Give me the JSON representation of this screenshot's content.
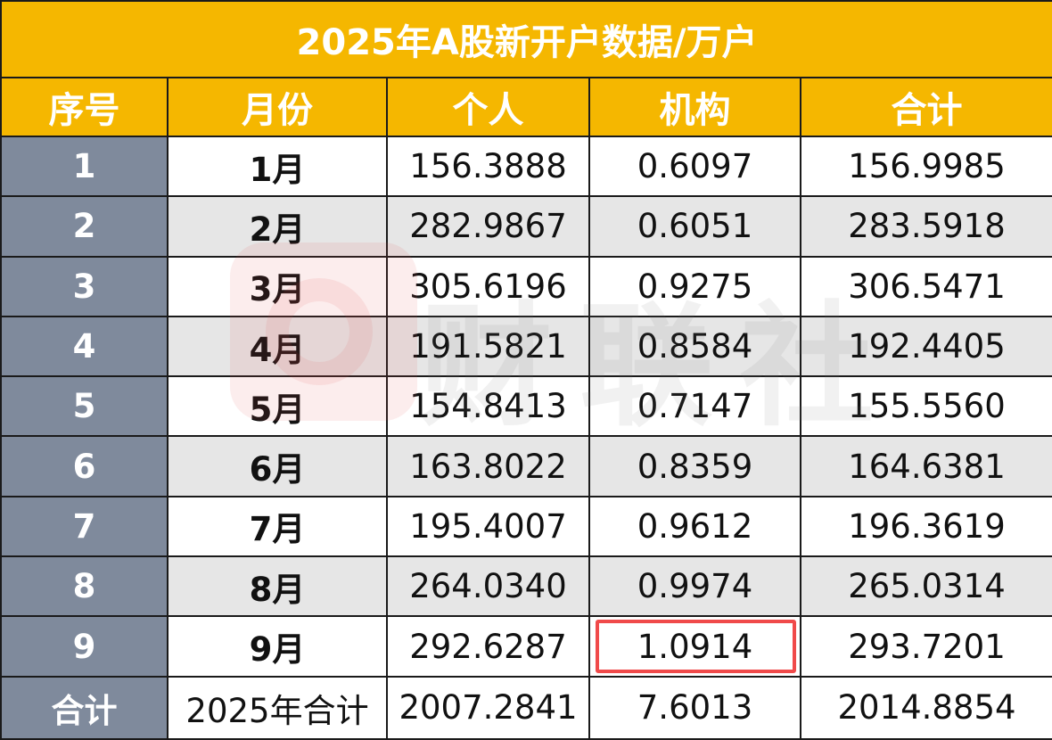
{
  "title": "2025年A股新开户数据/万户",
  "columns": [
    "序号",
    "月份",
    "个人",
    "机构",
    "合计"
  ],
  "rows": [
    {
      "seq": "1",
      "month": "1月",
      "individual": "156.3888",
      "institution": "0.6097",
      "total": "156.9985"
    },
    {
      "seq": "2",
      "month": "2月",
      "individual": "282.9867",
      "institution": "0.6051",
      "total": "283.5918"
    },
    {
      "seq": "3",
      "month": "3月",
      "individual": "305.6196",
      "institution": "0.9275",
      "total": "306.5471"
    },
    {
      "seq": "4",
      "month": "4月",
      "individual": "191.5821",
      "institution": "0.8584",
      "total": "192.4405"
    },
    {
      "seq": "5",
      "month": "5月",
      "individual": "154.8413",
      "institution": "0.7147",
      "total": "155.5560"
    },
    {
      "seq": "6",
      "month": "6月",
      "individual": "163.8022",
      "institution": "0.8359",
      "total": "164.6381"
    },
    {
      "seq": "7",
      "month": "7月",
      "individual": "195.4007",
      "institution": "0.9612",
      "total": "196.3619"
    },
    {
      "seq": "8",
      "month": "8月",
      "individual": "264.0340",
      "institution": "0.9974",
      "total": "265.0314"
    },
    {
      "seq": "9",
      "month": "9月",
      "individual": "292.6287",
      "institution": "1.0914",
      "total": "293.7201"
    }
  ],
  "total_row": {
    "seq": "合计",
    "month": "2025年合计",
    "individual": "2007.2841",
    "institution": "7.6013",
    "total": "2014.8854"
  },
  "highlighted_cell": {
    "row": "9",
    "column": "机构"
  },
  "watermark": {
    "text": "财联社",
    "logo": "cls-logo-icon"
  },
  "colors": {
    "header_bg": "#f5b700",
    "seq_bg": "#7f8a9c",
    "alt_row_bg": "#e6e6e6",
    "highlight_border": "#f04a4a"
  }
}
